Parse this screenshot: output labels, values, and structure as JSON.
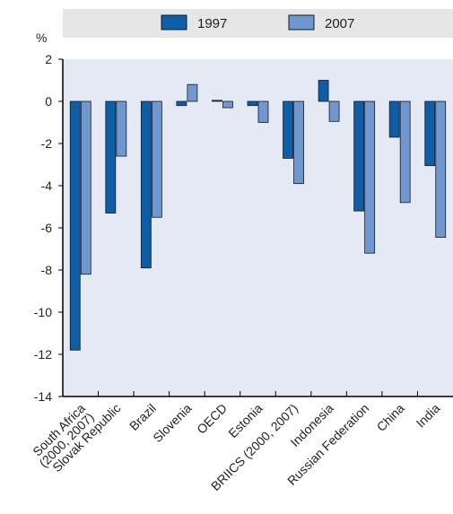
{
  "chart_data": {
    "type": "bar",
    "ylabel": "%",
    "ylim": [
      -14,
      2
    ],
    "yticks": [
      2,
      0,
      -2,
      -4,
      -6,
      -8,
      -10,
      -12,
      -14
    ],
    "grid": false,
    "legend_position": "top",
    "categories": [
      [
        "South Africa",
        "(2000, 2007)"
      ],
      [
        "Slovak Republic"
      ],
      [
        "Brazil"
      ],
      [
        "Slovenia"
      ],
      [
        "OECD"
      ],
      [
        "Estonia"
      ],
      [
        "BRIICS (2000, 2007)"
      ],
      [
        "Indonesia"
      ],
      [
        "Russian Federation"
      ],
      [
        "China"
      ],
      [
        "India"
      ]
    ],
    "series": [
      {
        "name": "1997",
        "color": "#0c5ea8",
        "values": [
          -11.8,
          -5.3,
          -7.9,
          -0.2,
          0.05,
          -0.2,
          -2.7,
          1.0,
          -5.2,
          -1.7,
          -3.05
        ]
      },
      {
        "name": "2007",
        "color": "#6f97d0",
        "values": [
          -8.2,
          -2.6,
          -5.5,
          0.8,
          -0.3,
          -1.0,
          -3.9,
          -0.95,
          -7.2,
          -4.8,
          -6.45
        ]
      }
    ],
    "colors": {
      "panel": "#e4e9f3",
      "legend_bg": "#e6e6e6",
      "axis": "#000000",
      "stroke": "#1a1a1a"
    }
  }
}
